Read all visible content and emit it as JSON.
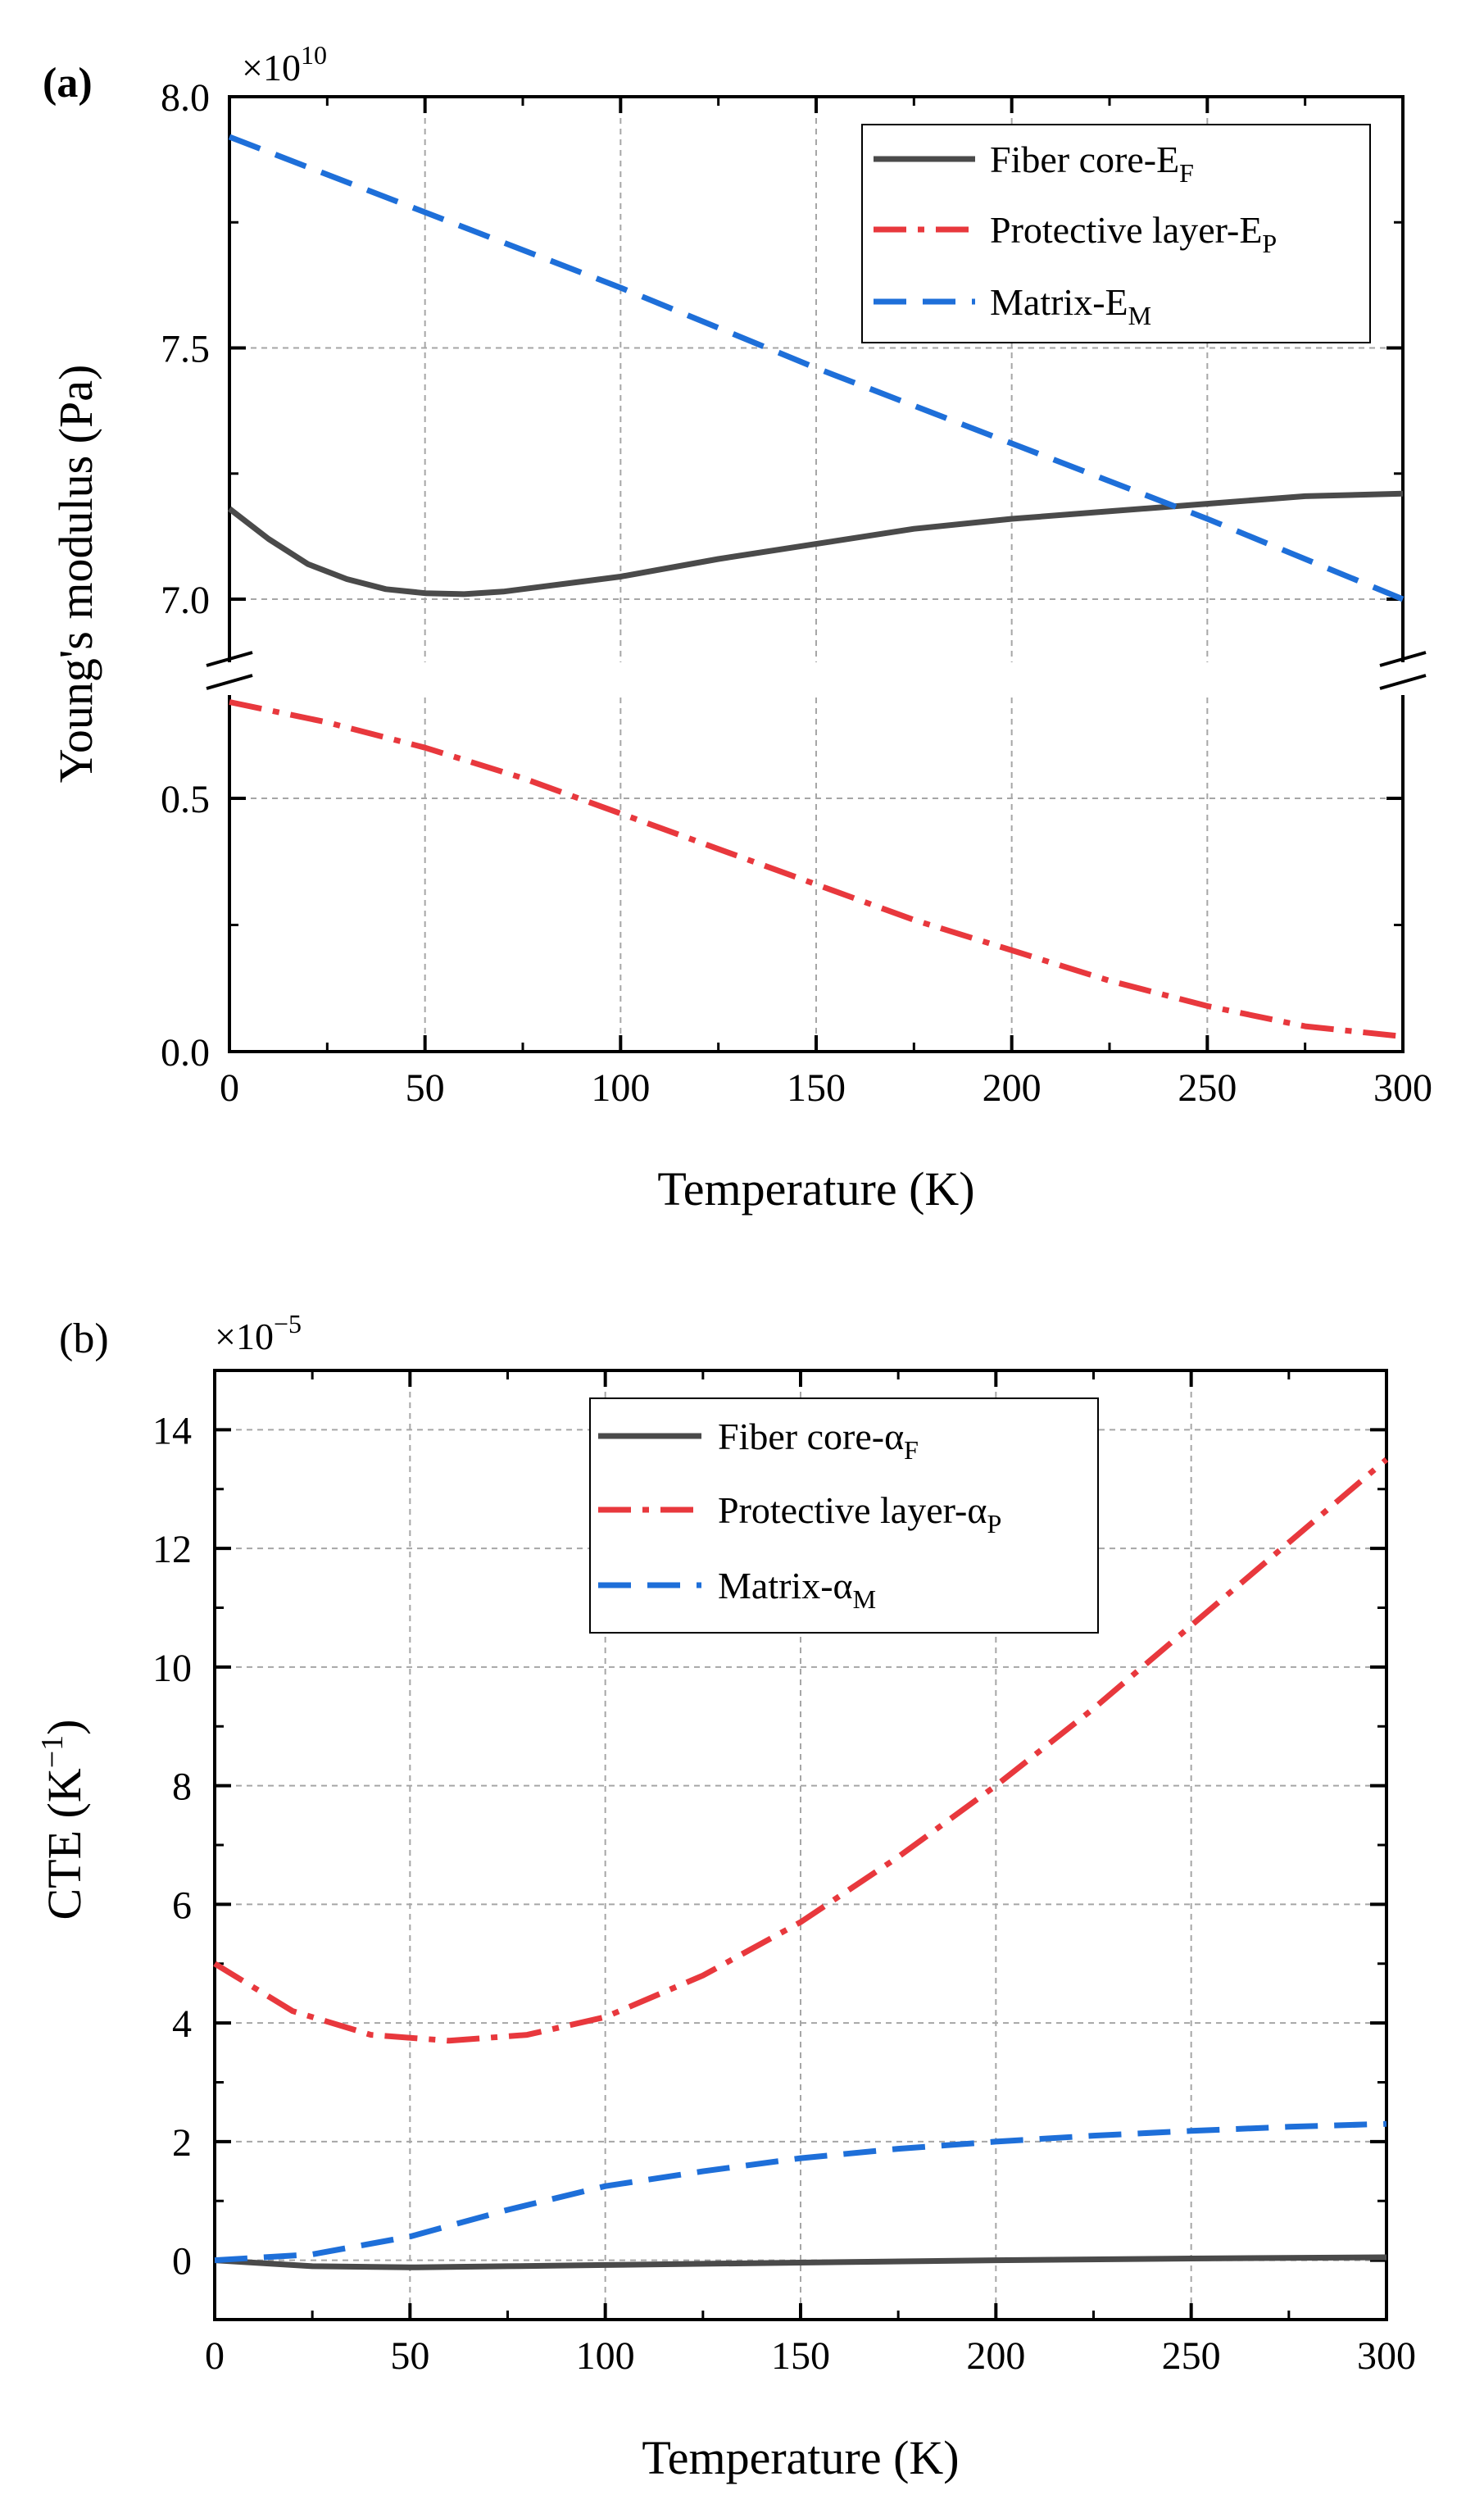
{
  "colors": {
    "fiber": "#4a4a4a",
    "protective": "#e8383d",
    "matrix": "#1e6fd9",
    "grid": "#a6a6a6",
    "axis": "#000000"
  },
  "chart_data": [
    {
      "panel_label": "(a)",
      "type": "line",
      "title": "",
      "xlabel": "Temperature (K)",
      "ylabel": "Young's modulus (Pa)",
      "multiplier_base": "×10",
      "multiplier_exp": "10",
      "xlim": [
        0,
        300
      ],
      "broken_axis": true,
      "upper_ylim": [
        6.85,
        8.0
      ],
      "lower_ylim": [
        0.0,
        0.72
      ],
      "xticks": [
        "0",
        "50",
        "100",
        "150",
        "200",
        "250",
        "300"
      ],
      "yticks_upper": [
        "7.0",
        "7.5",
        "8.0"
      ],
      "yticks_lower": [
        "0.0",
        "0.5"
      ],
      "grid": true,
      "legend_position": "top-right",
      "series": [
        {
          "name": "Fiber core-E",
          "subscript": "F",
          "color": "#4a4a4a",
          "dash": "solid",
          "segment": "upper",
          "x": [
            0,
            10,
            20,
            30,
            40,
            50,
            60,
            70,
            80,
            90,
            100,
            125,
            150,
            175,
            200,
            225,
            250,
            275,
            300
          ],
          "y": [
            7.18,
            7.12,
            7.07,
            7.04,
            7.02,
            7.012,
            7.01,
            7.015,
            7.025,
            7.035,
            7.045,
            7.08,
            7.11,
            7.14,
            7.16,
            7.175,
            7.19,
            7.205,
            7.21
          ]
        },
        {
          "name": "Protective layer-E",
          "subscript": "P",
          "color": "#e8383d",
          "dash": "dashdot",
          "segment": "lower",
          "x": [
            0,
            25,
            50,
            75,
            100,
            125,
            150,
            175,
            200,
            225,
            250,
            275,
            300
          ],
          "y": [
            0.69,
            0.65,
            0.6,
            0.54,
            0.47,
            0.4,
            0.33,
            0.26,
            0.2,
            0.14,
            0.09,
            0.05,
            0.03
          ]
        },
        {
          "name": "Matrix-E",
          "subscript": "M",
          "color": "#1e6fd9",
          "dash": "dash",
          "segment": "upper",
          "x": [
            0,
            50,
            100,
            150,
            200,
            250,
            300
          ],
          "y": [
            7.92,
            7.77,
            7.62,
            7.46,
            7.31,
            7.16,
            7.0
          ]
        }
      ]
    },
    {
      "panel_label": "(b)",
      "type": "line",
      "title": "",
      "xlabel": "Temperature (K)",
      "ylabel_base": "CTE (K",
      "ylabel_exp": "−1",
      "ylabel_close": ")",
      "multiplier_base": "×10",
      "multiplier_exp": "−5",
      "xlim": [
        0,
        300
      ],
      "ylim": [
        -1,
        15
      ],
      "xticks": [
        "0",
        "50",
        "100",
        "150",
        "200",
        "250",
        "300"
      ],
      "yticks": [
        "0",
        "2",
        "4",
        "6",
        "8",
        "10",
        "12",
        "14"
      ],
      "grid": true,
      "legend_position": "top-center",
      "series": [
        {
          "name": "Fiber core-α",
          "subscript": "F",
          "color": "#4a4a4a",
          "dash": "solid",
          "x": [
            0,
            25,
            50,
            75,
            100,
            150,
            200,
            250,
            300
          ],
          "y": [
            0,
            -0.1,
            -0.12,
            -0.1,
            -0.08,
            -0.04,
            0.0,
            0.03,
            0.05
          ]
        },
        {
          "name": "Protective layer-α",
          "subscript": "P",
          "color": "#e8383d",
          "dash": "dashdot",
          "x": [
            0,
            20,
            40,
            60,
            80,
            100,
            125,
            150,
            175,
            200,
            225,
            250,
            275,
            300
          ],
          "y": [
            5.0,
            4.2,
            3.8,
            3.7,
            3.8,
            4.1,
            4.8,
            5.7,
            6.8,
            8.0,
            9.3,
            10.7,
            12.1,
            13.5
          ]
        },
        {
          "name": "Matrix-α",
          "subscript": "M",
          "color": "#1e6fd9",
          "dash": "dash",
          "x": [
            0,
            25,
            50,
            75,
            100,
            125,
            150,
            175,
            200,
            225,
            250,
            275,
            300
          ],
          "y": [
            0.0,
            0.1,
            0.4,
            0.85,
            1.25,
            1.5,
            1.72,
            1.88,
            2.0,
            2.1,
            2.18,
            2.25,
            2.3
          ]
        }
      ]
    }
  ]
}
